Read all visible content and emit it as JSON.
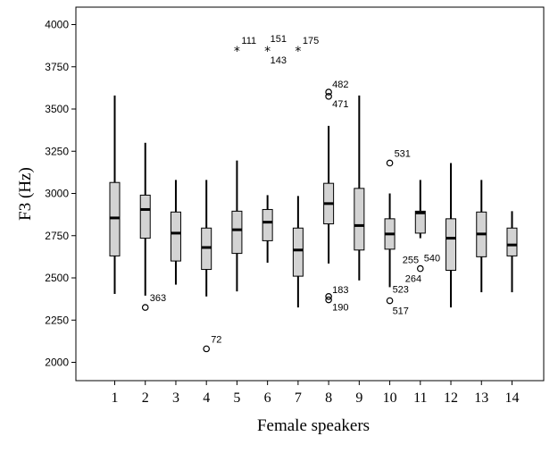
{
  "chart_data": {
    "type": "boxplot",
    "xlabel": "Female speakers",
    "ylabel": "F3 (Hz)",
    "ylim": [
      1900,
      4100
    ],
    "yticks": [
      2000,
      2250,
      2500,
      2750,
      3000,
      3250,
      3500,
      3750,
      4000
    ],
    "grid": false,
    "box_color": "#d3d3d3",
    "categories": [
      "1",
      "2",
      "3",
      "4",
      "5",
      "6",
      "7",
      "8",
      "9",
      "10",
      "11",
      "12",
      "13",
      "14"
    ],
    "boxes": [
      {
        "category": "1",
        "min": 2405,
        "q1": 2630,
        "median": 2855,
        "q3": 3065,
        "max": 3580
      },
      {
        "category": "2",
        "min": 2395,
        "q1": 2735,
        "median": 2905,
        "q3": 2990,
        "max": 3300
      },
      {
        "category": "3",
        "min": 2460,
        "q1": 2600,
        "median": 2765,
        "q3": 2890,
        "max": 3080
      },
      {
        "category": "4",
        "min": 2390,
        "q1": 2550,
        "median": 2680,
        "q3": 2795,
        "max": 3080
      },
      {
        "category": "5",
        "min": 2420,
        "q1": 2645,
        "median": 2785,
        "q3": 2895,
        "max": 3195
      },
      {
        "category": "6",
        "min": 2590,
        "q1": 2720,
        "median": 2830,
        "q3": 2905,
        "max": 2990
      },
      {
        "category": "7",
        "min": 2325,
        "q1": 2510,
        "median": 2665,
        "q3": 2795,
        "max": 2985
      },
      {
        "category": "8",
        "min": 2585,
        "q1": 2820,
        "median": 2940,
        "q3": 3060,
        "max": 3400
      },
      {
        "category": "9",
        "min": 2485,
        "q1": 2665,
        "median": 2810,
        "q3": 3030,
        "max": 3580
      },
      {
        "category": "10",
        "min": 2445,
        "q1": 2670,
        "median": 2760,
        "q3": 2850,
        "max": 3000
      },
      {
        "category": "11",
        "min": 2735,
        "q1": 2765,
        "median": 2885,
        "q3": 2895,
        "max": 3080
      },
      {
        "category": "12",
        "min": 2325,
        "q1": 2545,
        "median": 2735,
        "q3": 2850,
        "max": 3180
      },
      {
        "category": "13",
        "min": 2415,
        "q1": 2625,
        "median": 2760,
        "q3": 2890,
        "max": 3080
      },
      {
        "category": "14",
        "min": 2415,
        "q1": 2630,
        "median": 2695,
        "q3": 2795,
        "max": 2895
      }
    ],
    "outliers": [
      {
        "category": "2",
        "value": 2325,
        "marker": "circle",
        "labels": [
          "363"
        ]
      },
      {
        "category": "4",
        "value": 2080,
        "marker": "circle",
        "labels": [
          "72"
        ]
      },
      {
        "category": "5",
        "value": 3850,
        "marker": "star",
        "labels": [
          "111"
        ]
      },
      {
        "category": "6",
        "value": 3850,
        "marker": "star",
        "labels": [
          "151",
          "143"
        ]
      },
      {
        "category": "7",
        "value": 3850,
        "marker": "star",
        "labels": [
          "175"
        ]
      },
      {
        "category": "8",
        "value": 3600,
        "marker": "circle",
        "labels": [
          "482"
        ]
      },
      {
        "category": "8",
        "value": 3575,
        "marker": "circle",
        "labels": [
          "471"
        ]
      },
      {
        "category": "8",
        "value": 2390,
        "marker": "circle",
        "labels": [
          "183"
        ]
      },
      {
        "category": "8",
        "value": 2370,
        "marker": "circle",
        "labels": [
          "190"
        ]
      },
      {
        "category": "10",
        "value": 3180,
        "marker": "circle",
        "labels": [
          "531"
        ]
      },
      {
        "category": "10",
        "value": 2365,
        "marker": "circle",
        "labels": [
          "523",
          "517"
        ]
      },
      {
        "category": "11",
        "value": 2555,
        "marker": "circle",
        "labels": [
          "255",
          "540",
          "264"
        ]
      }
    ]
  }
}
